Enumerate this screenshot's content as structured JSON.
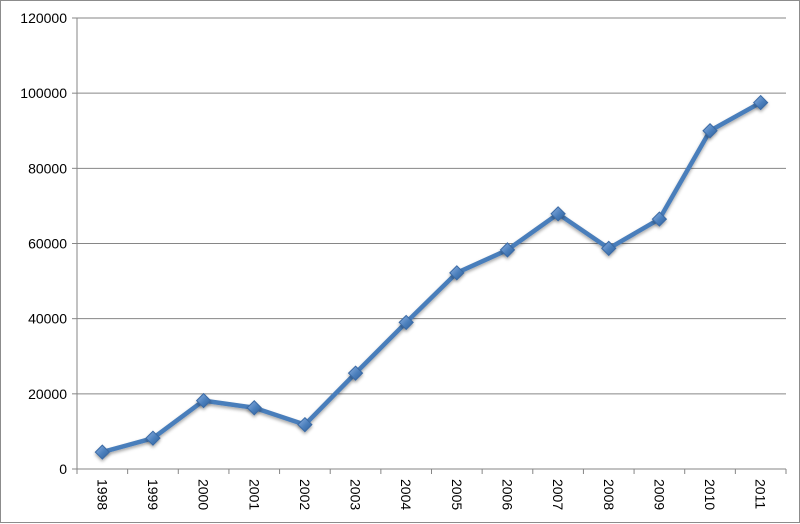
{
  "chart_data": {
    "type": "line",
    "title": "",
    "xlabel": "",
    "ylabel": "",
    "categories": [
      "1998",
      "1999",
      "2000",
      "2001",
      "2002",
      "2003",
      "2004",
      "2005",
      "2006",
      "2007",
      "2008",
      "2009",
      "2010",
      "2011"
    ],
    "series": [
      {
        "values": [
          4500,
          8200,
          18200,
          16300,
          11800,
          25500,
          39000,
          52200,
          58300,
          67900,
          58700,
          66500,
          90000,
          97500
        ],
        "color": "#4a7ebb",
        "marker": "diamond"
      }
    ],
    "ylim": [
      0,
      120000
    ],
    "yticks": [
      "0",
      "20000",
      "40000",
      "60000",
      "80000",
      "100000",
      "120000"
    ],
    "grid": true,
    "legend": "none"
  }
}
